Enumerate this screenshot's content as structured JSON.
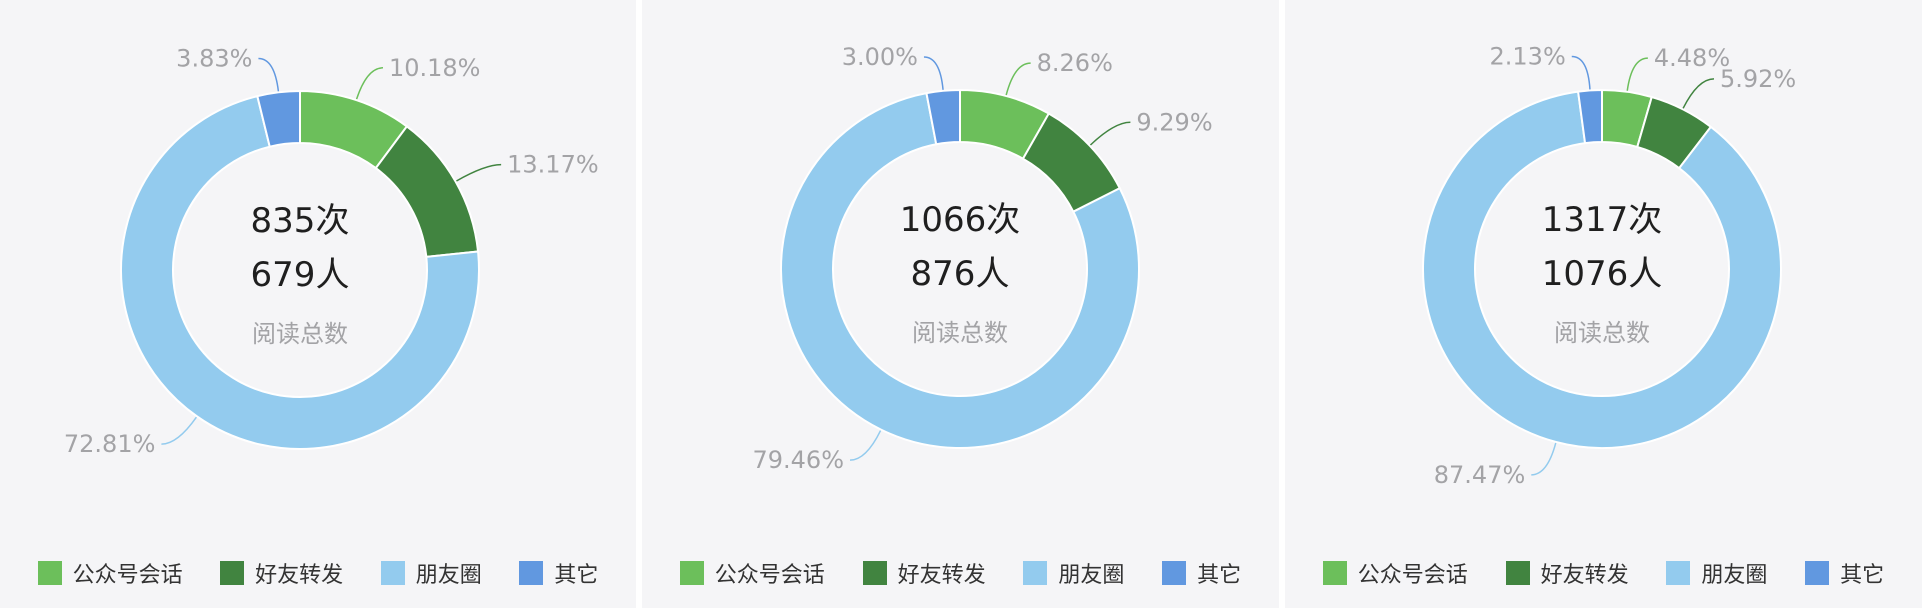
{
  "colors": {
    "公众号会话": "#6cbf5b",
    "好友转发": "#418440",
    "朋友圈": "#93cbee",
    "其它": "#6198e0",
    "label_text": "#a3a3a6",
    "center_main": "#1f1f1f",
    "center_sub": "#a3a3a6"
  },
  "legend": [
    "公众号会话",
    "好友转发",
    "朋友圈",
    "其它"
  ],
  "chart_data": [
    {
      "type": "pie",
      "donut": true,
      "categories": [
        "公众号会话",
        "好友转发",
        "朋友圈",
        "其它"
      ],
      "values": [
        10.18,
        13.17,
        72.81,
        3.83
      ],
      "labels": [
        "10.18%",
        "13.17%",
        "72.81%",
        "3.83%"
      ],
      "center": {
        "line1": "835次",
        "line2": "679人",
        "caption": "阅读总数"
      },
      "legend": [
        "公众号会话",
        "好友转发",
        "朋友圈",
        "其它"
      ]
    },
    {
      "type": "pie",
      "donut": true,
      "categories": [
        "公众号会话",
        "好友转发",
        "朋友圈",
        "其它"
      ],
      "values": [
        8.26,
        9.29,
        79.46,
        3.0
      ],
      "labels": [
        "8.26%",
        "9.29%",
        "79.46%",
        "3.00%"
      ],
      "center": {
        "line1": "1066次",
        "line2": "876人",
        "caption": "阅读总数"
      },
      "legend": [
        "公众号会话",
        "好友转发",
        "朋友圈",
        "其它"
      ]
    },
    {
      "type": "pie",
      "donut": true,
      "categories": [
        "公众号会话",
        "好友转发",
        "朋友圈",
        "其它"
      ],
      "values": [
        4.48,
        5.92,
        87.47,
        2.13
      ],
      "labels": [
        "4.48%",
        "5.92%",
        "87.47%",
        "2.13%"
      ],
      "center": {
        "line1": "1317次",
        "line2": "1076人",
        "caption": "阅读总数"
      },
      "legend": [
        "公众号会话",
        "好友转发",
        "朋友圈",
        "其它"
      ]
    }
  ]
}
